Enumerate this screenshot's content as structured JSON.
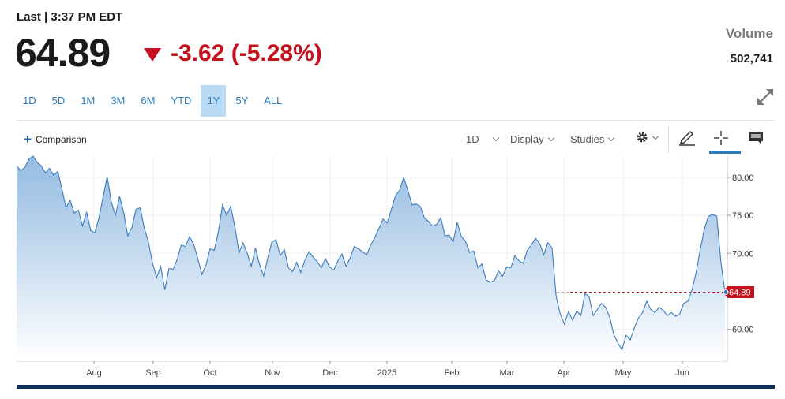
{
  "header": {
    "last_label": "Last | 3:37 PM EDT",
    "price": "64.89",
    "change": "-3.62 (-5.28%)",
    "change_color": "#c4111d",
    "volume_label": "Volume",
    "volume_value": "502,741"
  },
  "ranges": [
    {
      "label": "1D",
      "active": false
    },
    {
      "label": "5D",
      "active": false
    },
    {
      "label": "1M",
      "active": false
    },
    {
      "label": "3M",
      "active": false
    },
    {
      "label": "6M",
      "active": false
    },
    {
      "label": "YTD",
      "active": false
    },
    {
      "label": "1Y",
      "active": true
    },
    {
      "label": "5Y",
      "active": false
    },
    {
      "label": "ALL",
      "active": false
    }
  ],
  "toolbar": {
    "comparison_label": "Comparison",
    "interval_label": "1D",
    "display_label": "Display",
    "studies_label": "Studies",
    "icons": [
      "expand-icon",
      "gear-icon",
      "pencil-icon",
      "crosshair-icon",
      "comment-icon"
    ]
  },
  "chart_data": {
    "type": "area",
    "x_ticks": [
      "Aug",
      "Sep",
      "Oct",
      "Nov",
      "Dec",
      "2025",
      "Feb",
      "Mar",
      "Apr",
      "May",
      "Jun"
    ],
    "y_ticks": [
      "80.00",
      "75.00",
      "70.00",
      "60.00"
    ],
    "ylim": [
      55.8,
      82.8
    ],
    "grid": true,
    "last_value": 64.89,
    "last_label": "64.89",
    "line_color": "#3b7bbf",
    "reference_color": "#c4111d",
    "series": [
      {
        "values": [
          81.5,
          80.9,
          81.3,
          82.4,
          82.8,
          82.0,
          81.5,
          80.6,
          81.2,
          80.3,
          80.8,
          78.5,
          76.0,
          77.0,
          75.3,
          75.7,
          73.6,
          75.4,
          73.0,
          72.7,
          74.7,
          77.4,
          80.1,
          76.8,
          75.0,
          77.5,
          75.4,
          72.3,
          73.4,
          75.8,
          76.0,
          73.3,
          71.5,
          68.7,
          66.8,
          68.3,
          65.2,
          68.0,
          67.9,
          69.2,
          71.1,
          70.9,
          72.2,
          71.2,
          69.3,
          67.2,
          68.5,
          70.6,
          70.4,
          72.8,
          76.4,
          75.0,
          76.2,
          73.5,
          70.1,
          71.4,
          70.0,
          68.3,
          70.7,
          68.5,
          67.0,
          69.4,
          71.5,
          71.8,
          69.7,
          70.5,
          68.1,
          67.6,
          68.8,
          67.5,
          69.1,
          70.2,
          69.5,
          68.9,
          68.1,
          69.3,
          68.2,
          67.8,
          69.0,
          69.9,
          68.3,
          69.4,
          70.9,
          70.6,
          70.2,
          69.8,
          71.1,
          72.1,
          73.3,
          74.5,
          74.0,
          75.8,
          77.6,
          78.3,
          80.0,
          78.3,
          76.4,
          76.5,
          76.2,
          74.7,
          74.2,
          73.6,
          73.8,
          74.7,
          72.3,
          72.4,
          71.5,
          74.1,
          72.2,
          71.6,
          70.1,
          70.3,
          68.1,
          68.6,
          66.5,
          66.2,
          66.4,
          67.7,
          67.0,
          68.2,
          68.1,
          69.7,
          69.0,
          68.7,
          70.4,
          71.1,
          72.0,
          71.3,
          69.8,
          71.4,
          70.7,
          64.3,
          62.0,
          60.7,
          62.3,
          61.2,
          62.4,
          61.8,
          64.7,
          64.3,
          61.8,
          62.6,
          63.4,
          62.9,
          61.6,
          59.3,
          58.2,
          57.3,
          59.2,
          58.6,
          60.2,
          61.5,
          62.2,
          63.7,
          62.6,
          62.2,
          62.9,
          62.5,
          61.8,
          62.2,
          61.7,
          62.0,
          63.4,
          63.7,
          65.2,
          67.5,
          70.5,
          73.2,
          74.9,
          75.1,
          74.9,
          68.9,
          64.9
        ]
      }
    ]
  }
}
